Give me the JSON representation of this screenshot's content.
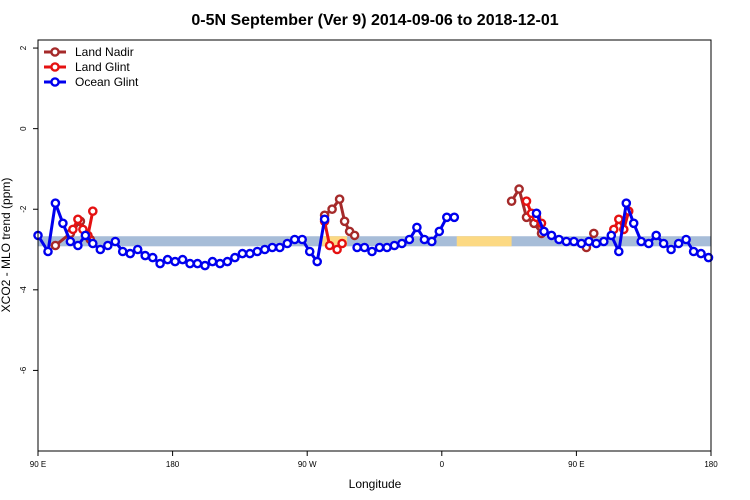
{
  "chart_data": {
    "type": "line",
    "title": "0-5N September (Ver 9)   2014-09-06 to 2018-12-01",
    "xlabel": "Longitude",
    "ylabel": "XCO2 - MLO trend (ppm)",
    "xlim": [
      -90,
      180
    ],
    "ylim": [
      -8,
      2.2
    ],
    "x_ticks": [
      {
        "value": -90,
        "label": "90 E"
      },
      {
        "value": -36,
        "label": "180"
      },
      {
        "value": 18,
        "label": "90 W"
      },
      {
        "value": 72,
        "label": "0"
      },
      {
        "value": 126,
        "label": "90 E"
      },
      {
        "value": 180,
        "label": "180"
      }
    ],
    "y_ticks": [
      {
        "value": 2,
        "label": "2"
      },
      {
        "value": 0,
        "label": "0"
      },
      {
        "value": -2,
        "label": "-2"
      },
      {
        "value": -4,
        "label": "-4"
      },
      {
        "value": -6,
        "label": "-6"
      }
    ],
    "grid": false,
    "legend_position": "top-left",
    "band": {
      "y_min": -2.92,
      "y_max": -2.67,
      "color": "#a7bdd8",
      "highlights": [
        {
          "x0": 24,
          "x1": 34,
          "color": "#fcd983"
        },
        {
          "x0": 78,
          "x1": 100,
          "color": "#fcd983"
        }
      ]
    },
    "series": [
      {
        "name": "Land Nadir",
        "color": "#a52a2a",
        "segments": [
          {
            "x": [
              -83,
              -77,
              -73,
              -69
            ],
            "y": [
              -2.9,
              -2.6,
              -2.3,
              -2.75
            ]
          },
          {
            "x": [
              25,
              28,
              31,
              33,
              35,
              37
            ],
            "y": [
              -2.15,
              -2.0,
              -1.75,
              -2.3,
              -2.55,
              -2.65
            ]
          },
          {
            "x": [
              100,
              103,
              106,
              109,
              112
            ],
            "y": [
              -1.8,
              -1.5,
              -2.2,
              -2.35,
              -2.6
            ]
          },
          {
            "x": [
              130,
              133
            ],
            "y": [
              -2.95,
              -2.6
            ]
          }
        ]
      },
      {
        "name": "Land Glint",
        "color": "#e51111",
        "segments": [
          {
            "x": [
              -76,
              -74,
              -72,
              -70,
              -68
            ],
            "y": [
              -2.5,
              -2.25,
              -2.5,
              -2.65,
              -2.05
            ]
          },
          {
            "x": [
              25,
              27
            ],
            "y": [
              -2.3,
              -2.9
            ]
          },
          {
            "x": [
              30,
              32
            ],
            "y": [
              -3.0,
              -2.85
            ]
          },
          {
            "x": [
              106,
              108,
              110,
              112
            ],
            "y": [
              -1.8,
              -2.1,
              -2.2,
              -2.35
            ]
          },
          {
            "x": [
              141,
              143,
              145,
              147
            ],
            "y": [
              -2.5,
              -2.25,
              -2.5,
              -2.05
            ]
          }
        ]
      },
      {
        "name": "Ocean Glint",
        "color": "#0000ee",
        "segments": [
          {
            "x": [
              -90,
              -86,
              -83,
              -80,
              -77,
              -74,
              -71,
              -68,
              -65,
              -62,
              -59,
              -56,
              -53,
              -50,
              -47,
              -44,
              -41,
              -38,
              -35,
              -32,
              -29,
              -26,
              -23,
              -20,
              -17,
              -14,
              -11,
              -8,
              -5,
              -2,
              1,
              4,
              7,
              10,
              13,
              16,
              19,
              22,
              25
            ],
            "y": [
              -2.65,
              -3.05,
              -1.85,
              -2.35,
              -2.8,
              -2.9,
              -2.65,
              -2.85,
              -3.0,
              -2.9,
              -2.8,
              -3.05,
              -3.1,
              -3.0,
              -3.15,
              -3.2,
              -3.35,
              -3.25,
              -3.3,
              -3.25,
              -3.35,
              -3.35,
              -3.4,
              -3.3,
              -3.35,
              -3.3,
              -3.2,
              -3.1,
              -3.1,
              -3.05,
              -3.0,
              -2.95,
              -2.95,
              -2.85,
              -2.75,
              -2.75,
              -3.05,
              -3.3,
              -2.25
            ]
          },
          {
            "x": [
              38,
              41,
              44,
              47,
              50,
              53,
              56,
              59,
              62,
              65,
              68,
              71,
              74,
              77
            ],
            "y": [
              -2.95,
              -2.95,
              -3.05,
              -2.95,
              -2.95,
              -2.9,
              -2.85,
              -2.75,
              -2.45,
              -2.75,
              -2.8,
              -2.55,
              -2.2,
              -2.2
            ]
          },
          {
            "x": [
              110,
              113,
              116,
              119,
              122,
              125,
              128,
              131,
              134,
              137,
              140,
              143,
              146,
              149,
              152,
              155,
              158,
              161,
              164,
              167,
              170,
              173,
              176,
              179
            ],
            "y": [
              -2.1,
              -2.55,
              -2.65,
              -2.75,
              -2.8,
              -2.8,
              -2.85,
              -2.8,
              -2.85,
              -2.8,
              -2.65,
              -3.05,
              -1.85,
              -2.35,
              -2.8,
              -2.85,
              -2.65,
              -2.85,
              -3.0,
              -2.85,
              -2.75,
              -3.05,
              -3.1,
              -3.2
            ]
          }
        ]
      }
    ]
  }
}
